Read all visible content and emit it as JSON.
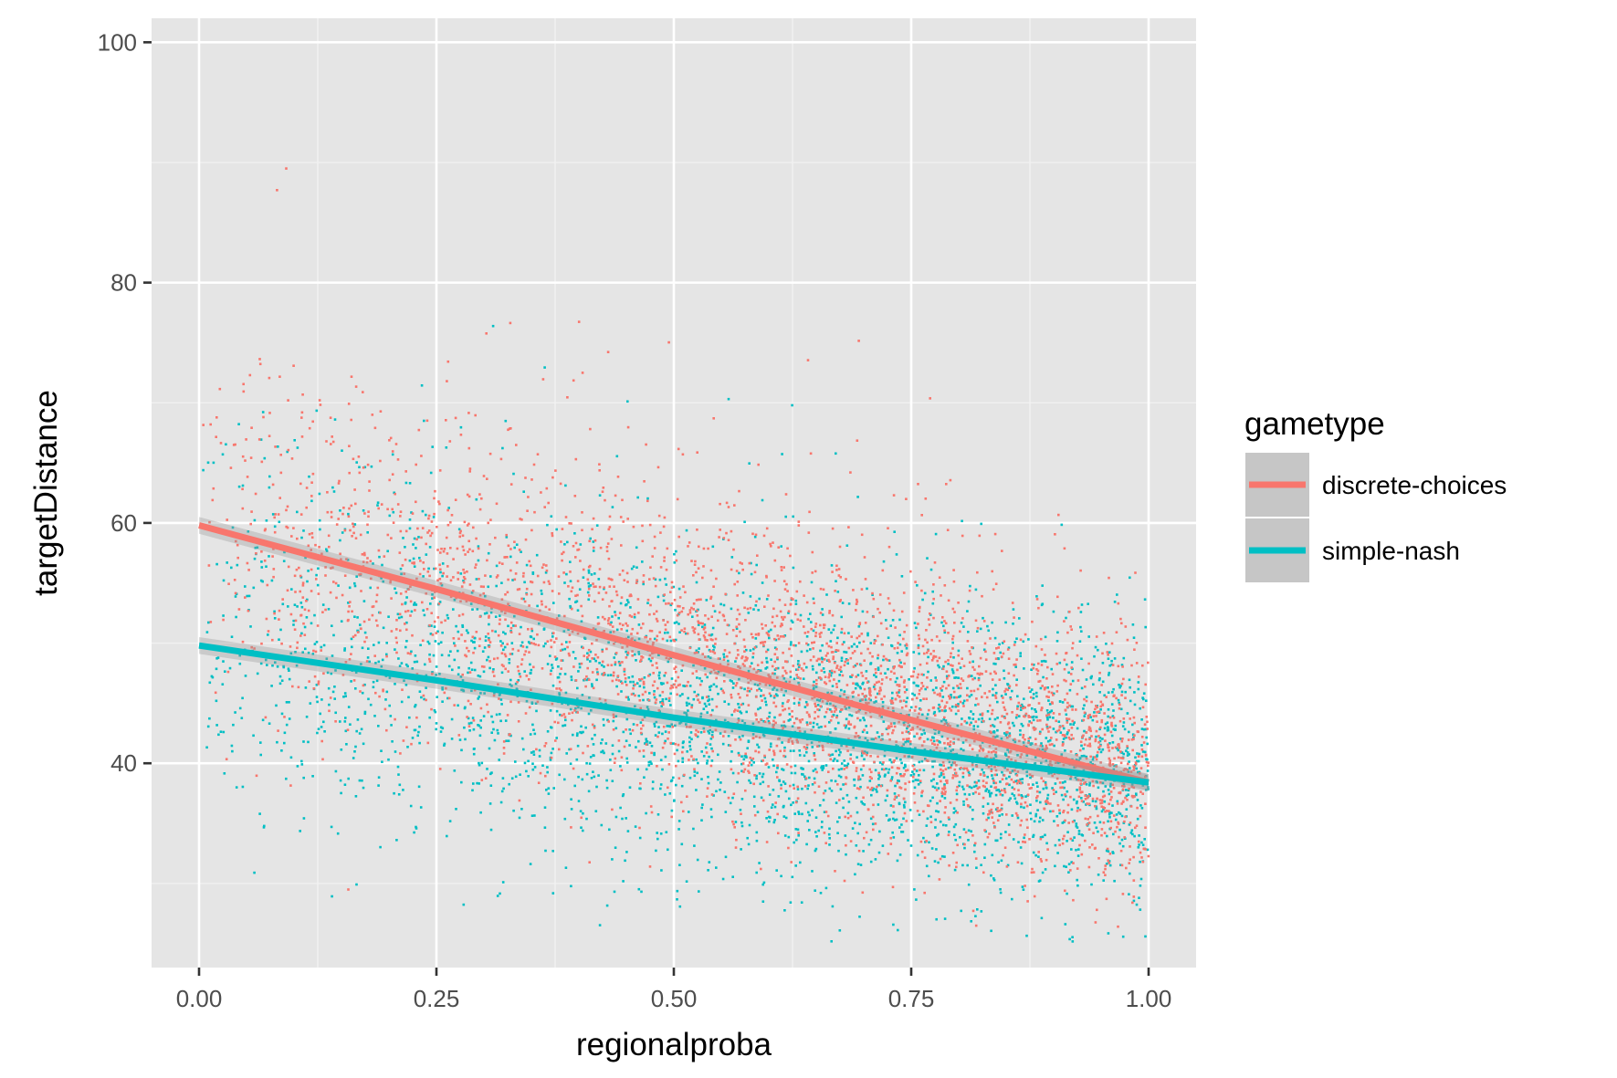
{
  "chart_data": {
    "type": "scatter",
    "xlabel": "regionalproba",
    "ylabel": "targetDistance",
    "xlim": [
      -0.05,
      1.05
    ],
    "ylim": [
      23.0,
      102.0
    ],
    "x_ticks": [
      0.0,
      0.25,
      0.5,
      0.75,
      1.0
    ],
    "x_tick_labels": [
      "0.00",
      "0.25",
      "0.50",
      "0.75",
      "1.00"
    ],
    "y_ticks": [
      40,
      60,
      80,
      100
    ],
    "y_tick_labels": [
      "40",
      "60",
      "80",
      "100"
    ],
    "grid": true,
    "panel_background": "#e5e5e5",
    "legend": {
      "title": "gametype",
      "position": "right"
    },
    "series": [
      {
        "name": "discrete-choices",
        "color": "#f8766d",
        "trend": {
          "x": [
            0.0,
            0.25,
            0.5,
            0.75,
            1.0
          ],
          "y": [
            59.8,
            54.5,
            49.0,
            43.6,
            38.4
          ]
        }
      },
      {
        "name": "simple-nash",
        "color": "#00bfc4",
        "trend": {
          "x": [
            0.0,
            0.25,
            0.5,
            0.75,
            1.0
          ],
          "y": [
            49.8,
            46.9,
            43.8,
            41.0,
            38.4
          ]
        }
      }
    ]
  }
}
